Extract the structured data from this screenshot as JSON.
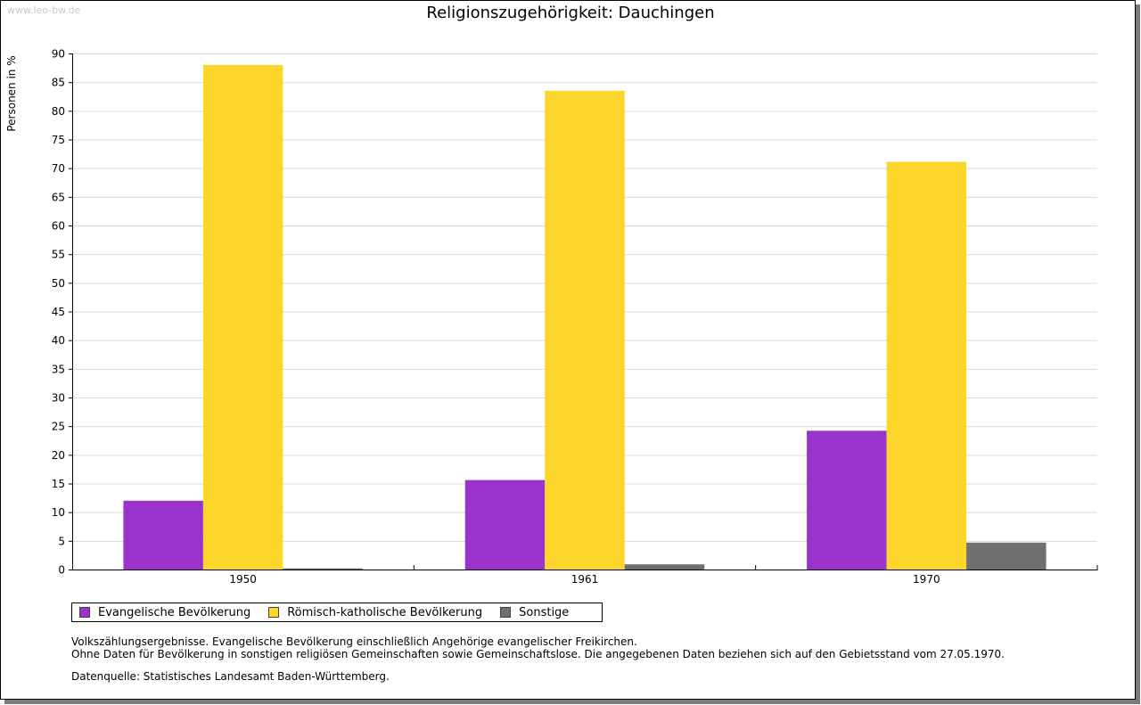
{
  "watermark": "www.leo-bw.de",
  "notes": {
    "line1": "Volkszählungsergebnisse. Evangelische Bevölkerung einschließlich Angehörige evangelischer Freikirchen.",
    "line2": "Ohne Daten für Bevölkerung in sonstigen religiösen Gemeinschaften sowie Gemeinschaftslose. Die angegebenen Daten beziehen sich auf den Gebietsstand vom 27.05.1970.",
    "source": "Datenquelle: Statistisches Landesamt Baden-Württemberg."
  },
  "chart_data": {
    "type": "bar",
    "title": "Religionszugehörigkeit: Dauchingen",
    "xlabel": "",
    "ylabel": "Personen in %",
    "categories": [
      "1950",
      "1961",
      "1970"
    ],
    "ylim": [
      0,
      90
    ],
    "yticks": [
      0,
      5,
      10,
      15,
      20,
      25,
      30,
      35,
      40,
      45,
      50,
      55,
      60,
      65,
      70,
      75,
      80,
      85,
      90
    ],
    "grid": true,
    "legend_position": "bottom-left",
    "series": [
      {
        "name": "Evangelische Bevölkerung",
        "color": "#9933cc",
        "values": [
          12.0,
          15.6,
          24.2
        ]
      },
      {
        "name": "Römisch-katholische Bevölkerung",
        "color": "#fcd62b",
        "values": [
          88.0,
          83.5,
          71.1
        ]
      },
      {
        "name": "Sonstige",
        "color": "#707070",
        "values": [
          0.2,
          0.9,
          4.7
        ]
      }
    ]
  }
}
